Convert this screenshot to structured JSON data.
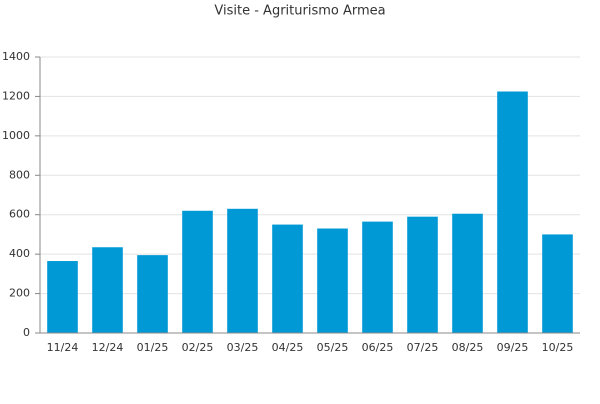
{
  "chart_data": {
    "type": "bar",
    "title": "Visite - Agriturismo Armea",
    "categories": [
      "11/24",
      "12/24",
      "01/25",
      "02/25",
      "03/25",
      "04/25",
      "05/25",
      "06/25",
      "07/25",
      "08/25",
      "09/25",
      "10/25"
    ],
    "values": [
      365,
      435,
      395,
      620,
      630,
      550,
      530,
      565,
      590,
      605,
      1225,
      500
    ],
    "color": "#0099d6",
    "ylim": [
      0,
      1400
    ],
    "yticks": [
      0,
      200,
      400,
      600,
      800,
      1000,
      1200,
      1400
    ],
    "grid": true
  }
}
